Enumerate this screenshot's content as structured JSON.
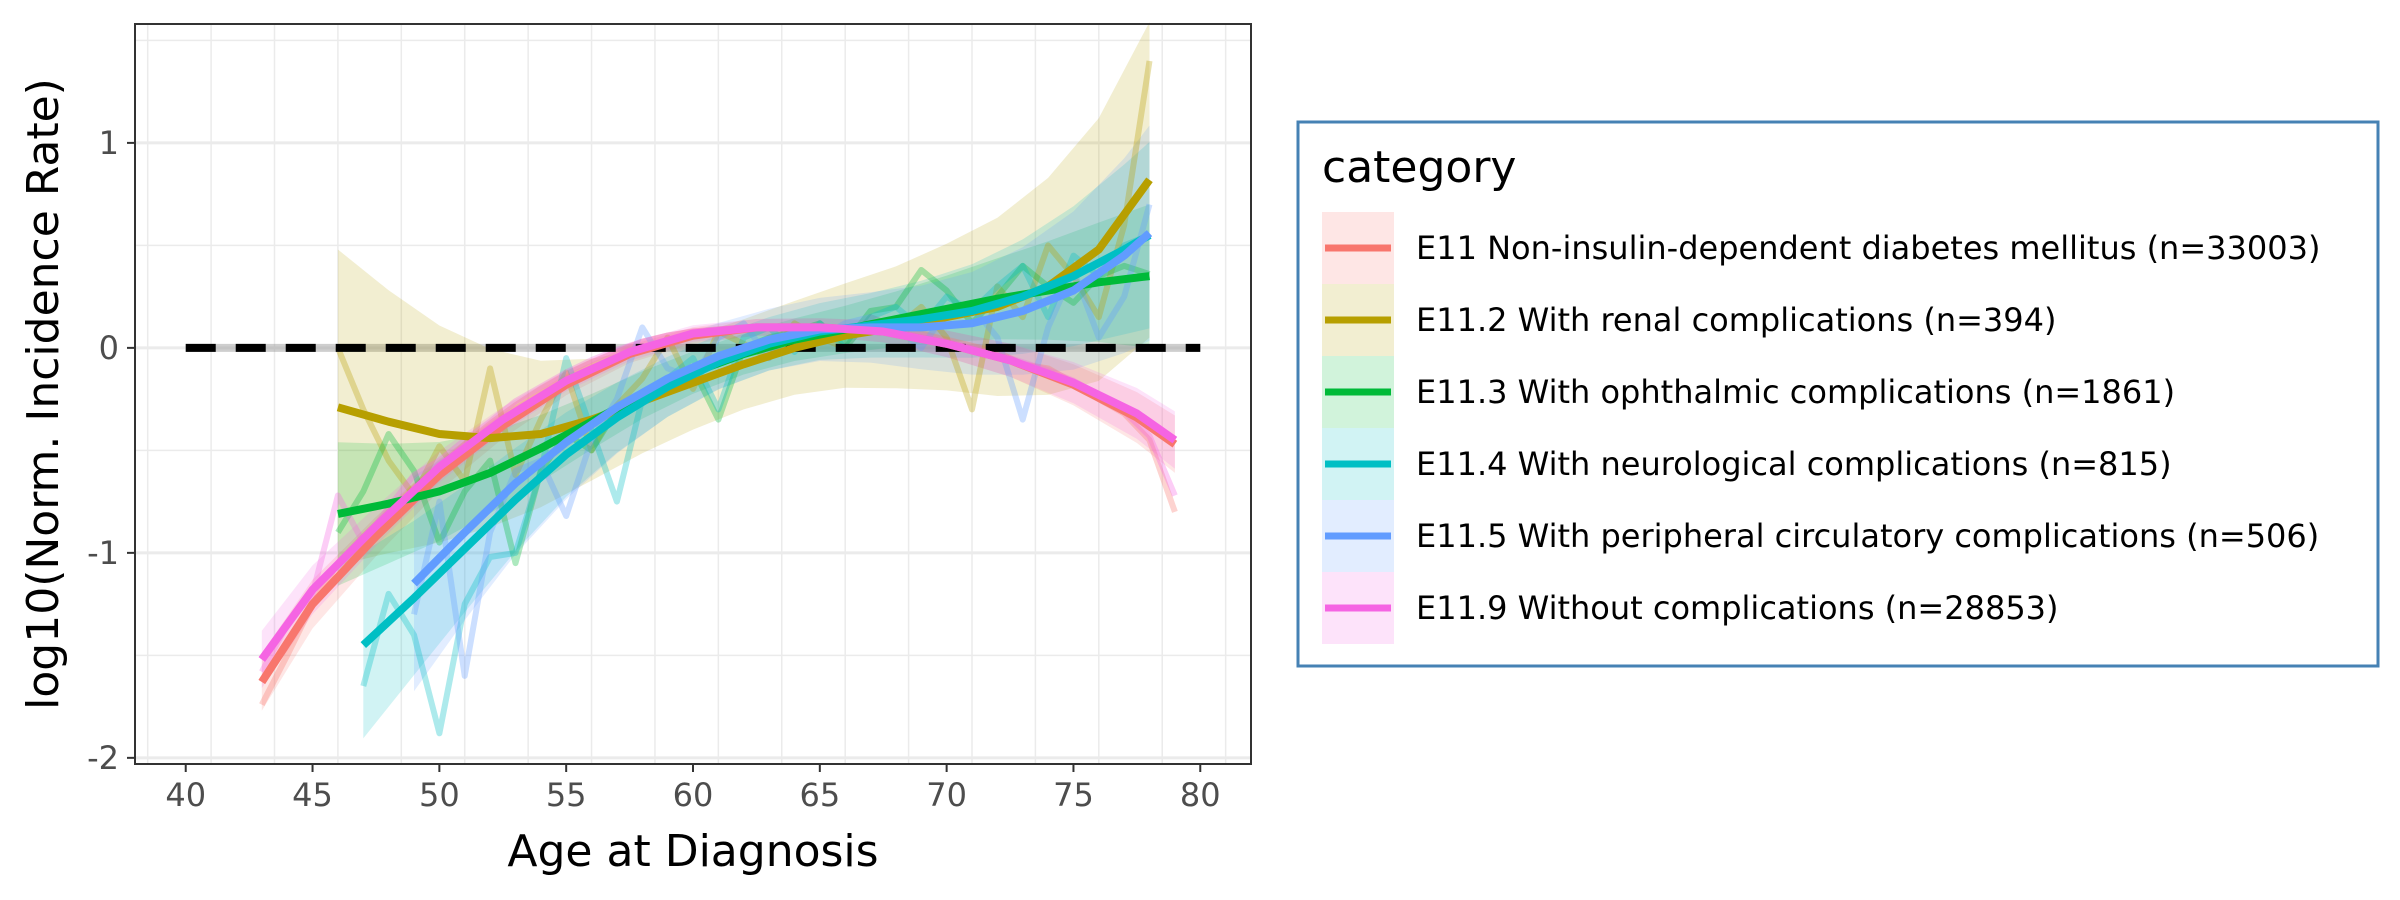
{
  "chart_data": {
    "type": "line",
    "xlabel": "Age at Diagnosis",
    "ylabel": "log10(Norm. Incidence Rate)",
    "xlim": [
      38,
      82
    ],
    "ylim": [
      -2.03,
      1.58
    ],
    "x_ticks": [
      40,
      45,
      50,
      55,
      60,
      65,
      70,
      75,
      80
    ],
    "y_ticks": [
      1,
      0,
      -1,
      -2
    ],
    "y_tick_labels": [
      "1",
      "0",
      "-1",
      "-2"
    ],
    "grid": true,
    "reference_line_y": 0,
    "legend": {
      "title": "category",
      "position": "right",
      "entries": [
        "E11 Non-insulin-dependent diabetes mellitus (n=33003)",
        "E11.2 With renal complications (n=394)",
        "E11.3 With ophthalmic complications (n=1861)",
        "E11.4 With neurological complications (n=815)",
        "E11.5 With peripheral circulatory complications (n=506)",
        "E11.9 Without complications (n=28853)"
      ]
    },
    "series": [
      {
        "name": "E11 Non-insulin-dependent diabetes mellitus (n=33003)",
        "color": "#F8766D",
        "raw_x": [
          43,
          44,
          45,
          46,
          47,
          48,
          49,
          50,
          51,
          52,
          53,
          54,
          55,
          56,
          57,
          58,
          59,
          60,
          61,
          62,
          63,
          64,
          65,
          66,
          67,
          68,
          69,
          70,
          71,
          72,
          73,
          74,
          75,
          76,
          77,
          78,
          79
        ],
        "raw_y": [
          -1.74,
          -1.5,
          -1.25,
          -1.05,
          -0.92,
          -0.8,
          -0.68,
          -0.58,
          -0.47,
          -0.37,
          -0.28,
          -0.2,
          -0.13,
          -0.07,
          -0.02,
          0.03,
          0.06,
          0.08,
          0.09,
          0.1,
          0.1,
          0.1,
          0.09,
          0.09,
          0.08,
          0.08,
          0.07,
          0.04,
          0.01,
          -0.02,
          -0.08,
          -0.1,
          -0.17,
          -0.25,
          -0.32,
          -0.45,
          -0.8
        ],
        "trend_x": [
          43,
          45,
          47.5,
          50,
          52.5,
          55,
          57.5,
          60,
          62.5,
          65,
          67.5,
          70,
          72.5,
          75,
          77.5,
          79
        ],
        "trend_y": [
          -1.63,
          -1.25,
          -0.92,
          -0.62,
          -0.38,
          -0.18,
          -0.03,
          0.06,
          0.1,
          0.1,
          0.08,
          0.02,
          -0.06,
          -0.18,
          -0.34,
          -0.47
        ],
        "band": 0.04
      },
      {
        "name": "E11.2 With renal complications (n=394)",
        "color": "#B79F00",
        "raw_x": [
          46,
          47,
          48,
          49,
          50,
          51,
          52,
          53,
          54,
          55,
          56,
          57,
          58,
          59,
          60,
          61,
          62,
          63,
          64,
          65,
          66,
          67,
          68,
          69,
          70,
          71,
          72,
          73,
          74,
          75,
          76,
          77,
          78
        ],
        "raw_y": [
          0.0,
          -0.3,
          -0.55,
          -0.72,
          -0.48,
          -0.65,
          -0.1,
          -0.62,
          -0.35,
          -0.12,
          -0.5,
          -0.28,
          -0.15,
          0.05,
          -0.2,
          0.08,
          0.02,
          -0.05,
          0.12,
          0.05,
          0.0,
          0.15,
          0.1,
          0.2,
          0.05,
          -0.3,
          0.3,
          0.15,
          0.5,
          0.35,
          0.15,
          0.6,
          1.4
        ],
        "trend_x": [
          46,
          48,
          50,
          52,
          54,
          56,
          58,
          60,
          62,
          64,
          66,
          68,
          70,
          72,
          74,
          76,
          78
        ],
        "trend_y": [
          -0.29,
          -0.36,
          -0.42,
          -0.44,
          -0.42,
          -0.35,
          -0.26,
          -0.17,
          -0.08,
          0.0,
          0.06,
          0.1,
          0.15,
          0.2,
          0.3,
          0.48,
          0.82
        ],
        "band": 0.22
      },
      {
        "name": "E11.3 With ophthalmic complications (n=1861)",
        "color": "#00BA38",
        "raw_x": [
          46,
          47,
          48,
          49,
          50,
          51,
          52,
          53,
          54,
          55,
          56,
          57,
          58,
          59,
          60,
          61,
          62,
          63,
          64,
          65,
          66,
          67,
          68,
          69,
          70,
          71,
          72,
          73,
          74,
          75,
          76,
          77,
          78
        ],
        "raw_y": [
          -0.9,
          -0.7,
          -0.42,
          -0.6,
          -0.95,
          -0.7,
          -0.55,
          -1.05,
          -0.6,
          -0.42,
          -0.5,
          -0.3,
          -0.25,
          -0.15,
          -0.1,
          -0.35,
          0.0,
          0.05,
          0.08,
          0.12,
          0.02,
          0.18,
          0.2,
          0.38,
          0.28,
          0.12,
          0.25,
          0.4,
          0.3,
          0.22,
          0.35,
          0.4,
          0.36
        ],
        "trend_x": [
          46,
          48,
          50,
          52,
          54,
          56,
          58,
          60,
          62,
          64,
          66,
          68,
          70,
          72,
          74,
          76,
          78
        ],
        "trend_y": [
          -0.81,
          -0.76,
          -0.7,
          -0.61,
          -0.49,
          -0.36,
          -0.23,
          -0.12,
          -0.03,
          0.04,
          0.09,
          0.14,
          0.19,
          0.24,
          0.28,
          0.32,
          0.35
        ],
        "band": 0.1
      },
      {
        "name": "E11.4 With neurological complications (n=815)",
        "color": "#00BFC4",
        "raw_x": [
          47,
          48,
          49,
          50,
          51,
          52,
          53,
          54,
          55,
          56,
          57,
          58,
          59,
          60,
          61,
          62,
          63,
          64,
          65,
          66,
          67,
          68,
          69,
          70,
          71,
          72,
          73,
          74,
          75,
          76,
          77,
          78
        ],
        "raw_y": [
          -1.65,
          -1.2,
          -1.4,
          -1.88,
          -1.25,
          -1.02,
          -1.0,
          -0.6,
          -0.05,
          -0.4,
          -0.75,
          -0.25,
          -0.15,
          -0.05,
          -0.3,
          0.05,
          0.1,
          -0.02,
          0.12,
          0.0,
          0.15,
          0.2,
          0.1,
          0.25,
          0.18,
          0.3,
          0.4,
          0.15,
          0.45,
          0.35,
          0.5,
          0.55
        ],
        "trend_x": [
          47,
          49,
          51,
          53,
          55,
          57,
          59,
          61,
          63,
          65,
          67,
          69,
          71,
          73,
          75,
          77,
          78
        ],
        "trend_y": [
          -1.45,
          -1.22,
          -0.98,
          -0.74,
          -0.52,
          -0.34,
          -0.19,
          -0.07,
          0.02,
          0.08,
          0.11,
          0.14,
          0.18,
          0.25,
          0.35,
          0.48,
          0.55
        ],
        "band": 0.13
      },
      {
        "name": "E11.5 With peripheral circulatory complications (n=506)",
        "color": "#619CFF",
        "raw_x": [
          49,
          50,
          51,
          52,
          53,
          54,
          55,
          56,
          57,
          58,
          59,
          60,
          61,
          62,
          63,
          64,
          65,
          66,
          67,
          68,
          69,
          70,
          71,
          72,
          73,
          74,
          75,
          76,
          77,
          78
        ],
        "raw_y": [
          -1.3,
          -0.75,
          -1.6,
          -0.9,
          -0.6,
          -0.55,
          -0.82,
          -0.45,
          -0.25,
          0.1,
          -0.1,
          -0.15,
          0.05,
          0.12,
          -0.05,
          0.1,
          0.05,
          0.12,
          0.15,
          0.1,
          0.0,
          0.18,
          0.2,
          0.05,
          -0.35,
          0.1,
          0.38,
          0.05,
          0.25,
          0.7
        ],
        "trend_x": [
          49,
          51,
          53,
          55,
          57,
          59,
          61,
          63,
          65,
          67,
          69,
          71,
          73,
          75,
          77,
          78
        ],
        "trend_y": [
          -1.15,
          -0.9,
          -0.66,
          -0.46,
          -0.29,
          -0.15,
          -0.04,
          0.04,
          0.09,
          0.1,
          0.1,
          0.12,
          0.18,
          0.28,
          0.45,
          0.56
        ],
        "band": 0.15
      },
      {
        "name": "E11.9 Without complications (n=28853)",
        "color": "#F564E3",
        "raw_x": [
          43,
          44,
          45,
          46,
          47,
          48,
          49,
          50,
          51,
          52,
          53,
          54,
          55,
          56,
          57,
          58,
          59,
          60,
          61,
          62,
          63,
          64,
          65,
          66,
          67,
          68,
          69,
          70,
          71,
          72,
          73,
          74,
          75,
          76,
          77,
          78,
          79
        ],
        "raw_y": [
          -1.58,
          -1.35,
          -1.2,
          -0.72,
          -0.95,
          -0.78,
          -0.62,
          -0.55,
          -0.45,
          -0.36,
          -0.26,
          -0.19,
          -0.12,
          -0.06,
          -0.01,
          0.03,
          0.06,
          0.08,
          0.09,
          0.1,
          0.1,
          0.1,
          0.09,
          0.09,
          0.08,
          0.07,
          0.06,
          0.03,
          0.0,
          -0.03,
          -0.07,
          -0.11,
          -0.16,
          -0.23,
          -0.31,
          -0.43,
          -0.72
        ],
        "trend_x": [
          43,
          45,
          47.5,
          50,
          52.5,
          55,
          57.5,
          60,
          62.5,
          65,
          67.5,
          70,
          72.5,
          75,
          77.5,
          79
        ],
        "trend_y": [
          -1.52,
          -1.18,
          -0.87,
          -0.58,
          -0.35,
          -0.16,
          -0.02,
          0.07,
          0.1,
          0.1,
          0.08,
          0.02,
          -0.06,
          -0.17,
          -0.32,
          -0.45
        ],
        "band": 0.04
      }
    ]
  }
}
